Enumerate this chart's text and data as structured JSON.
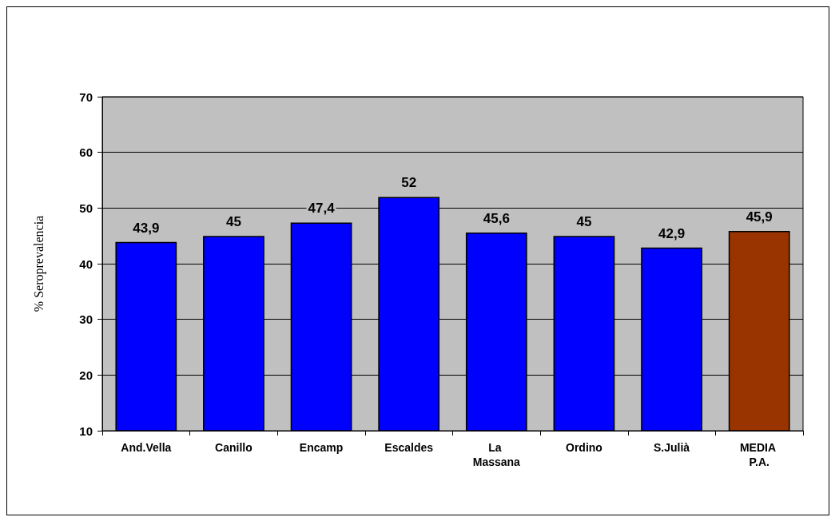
{
  "chart_data": {
    "type": "bar",
    "ylabel": "% Seroprevalencia",
    "categories": [
      "And.Vella",
      "Canillo",
      "Encamp",
      "Escaldes",
      "La Massana",
      "Ordino",
      "S.Julià",
      "MEDIA P.A."
    ],
    "values": [
      43.9,
      45,
      47.4,
      52,
      45.6,
      45,
      42.9,
      45.9
    ],
    "colors": [
      "#0000ff",
      "#0000ff",
      "#0000ff",
      "#0000ff",
      "#0000ff",
      "#0000ff",
      "#0000ff",
      "#993300"
    ],
    "value_labels": [
      "43,9",
      "45",
      "47,4",
      "52",
      "45,6",
      "45",
      "42,9",
      "45,9"
    ],
    "ylim": [
      10,
      70
    ],
    "yticks": [
      10,
      20,
      30,
      40,
      50,
      60,
      70
    ],
    "grid": "y"
  }
}
